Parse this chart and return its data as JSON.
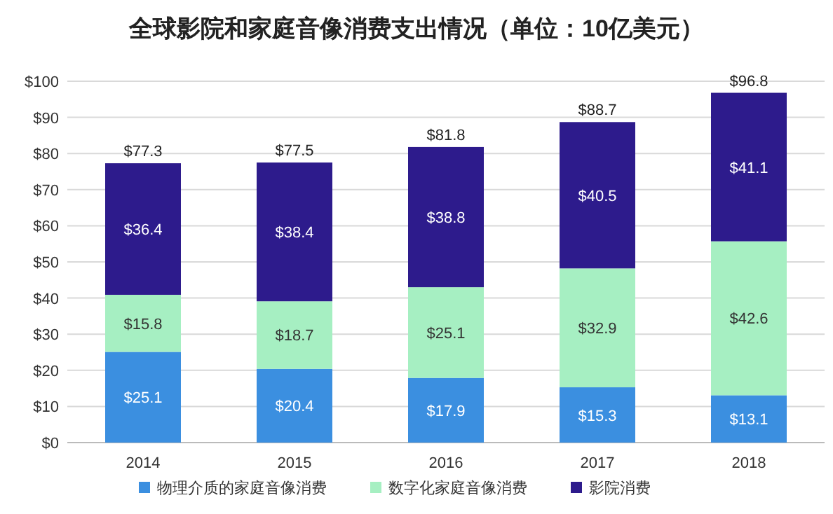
{
  "chart_data": {
    "type": "bar",
    "title": "全球影院和家庭音像消费支出情况（单位：10亿美元）",
    "categories": [
      "2014",
      "2015",
      "2016",
      "2017",
      "2018"
    ],
    "stacked": true,
    "grid": "y",
    "legend": "bottom",
    "ylim": [
      0,
      100
    ],
    "yticks": [
      {
        "value": 0,
        "label": "$0"
      },
      {
        "value": 10,
        "label": "$10"
      },
      {
        "value": 20,
        "label": "$20"
      },
      {
        "value": 30,
        "label": "$30"
      },
      {
        "value": 40,
        "label": "$40"
      },
      {
        "value": 50,
        "label": "$50"
      },
      {
        "value": 60,
        "label": "$60"
      },
      {
        "value": 70,
        "label": "$70"
      },
      {
        "value": 80,
        "label": "$80"
      },
      {
        "value": 90,
        "label": "$90"
      },
      {
        "value": 100,
        "label": "$100"
      }
    ],
    "series": [
      {
        "name": "物理介质的家庭音像消费",
        "color": "#3b8fe0",
        "values": [
          25.1,
          20.4,
          17.9,
          15.3,
          13.1
        ],
        "value_labels": [
          "$25.1",
          "$20.4",
          "$17.9",
          "$15.3",
          "$13.1"
        ]
      },
      {
        "name": "数字化家庭音像消费",
        "color": "#a6efc2",
        "values": [
          15.8,
          18.7,
          25.1,
          32.9,
          42.6
        ],
        "value_labels": [
          "$15.8",
          "$18.7",
          "$25.1",
          "$32.9",
          "$42.6"
        ]
      },
      {
        "name": "影院消费",
        "color": "#2d1b8c",
        "values": [
          36.4,
          38.4,
          38.8,
          40.5,
          41.1
        ],
        "value_labels": [
          "$36.4",
          "$38.4",
          "$38.8",
          "$40.5",
          "$41.1"
        ]
      }
    ],
    "totals": [
      "$77.3",
      "$77.5",
      "$81.8",
      "$88.7",
      "$96.8"
    ]
  }
}
